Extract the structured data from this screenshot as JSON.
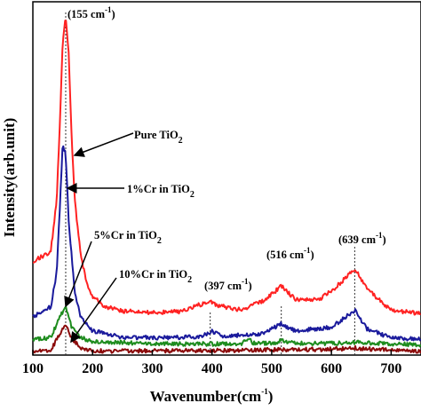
{
  "chart_data": {
    "type": "line",
    "xlabel": "Wavenumber(cm",
    "xlabel_sup": "-1",
    "xlabel_tail": ")",
    "ylabel": "Intensity(arb.unit)",
    "xlim": [
      100,
      750
    ],
    "ylim": [
      0,
      1.0
    ],
    "x_ticks": [
      100,
      200,
      300,
      400,
      500,
      600,
      700
    ],
    "x_tick_labels": [
      "100",
      "200",
      "300",
      "400",
      "500",
      "600",
      "700"
    ],
    "y_ticks_labeled": false,
    "grid": false,
    "legend": "none",
    "peak_markers": [
      155,
      397,
      516,
      639
    ],
    "peak_labels": [
      {
        "x": 155,
        "text": "(155 cm",
        "sup": "-1",
        "tail": ")"
      },
      {
        "x": 397,
        "text": "(397 cm",
        "sup": "-1",
        "tail": ")"
      },
      {
        "x": 516,
        "text": "(516 cm",
        "sup": "-1",
        "tail": ")"
      },
      {
        "x": 639,
        "text": "(639 cm",
        "sup": "-1",
        "tail": ")"
      }
    ],
    "series": [
      {
        "label": {
          "text": "Pure TiO",
          "sub": "2"
        },
        "color": "#ff2222",
        "x": [
          100,
          130,
          140,
          145,
          150,
          155,
          160,
          165,
          170,
          180,
          190,
          200,
          220,
          250,
          300,
          350,
          380,
          397,
          410,
          450,
          490,
          516,
          540,
          580,
          610,
          639,
          660,
          700,
          750
        ],
        "y": [
          0.27,
          0.3,
          0.45,
          0.66,
          0.91,
          0.98,
          0.87,
          0.62,
          0.45,
          0.29,
          0.21,
          0.17,
          0.14,
          0.127,
          0.123,
          0.126,
          0.146,
          0.156,
          0.143,
          0.13,
          0.16,
          0.2,
          0.16,
          0.16,
          0.2,
          0.25,
          0.19,
          0.13,
          0.12
        ]
      },
      {
        "label": {
          "text": "1%Cr in TiO",
          "sub": "2"
        },
        "color": "#1a1a9c",
        "x": [
          100,
          130,
          140,
          145,
          150,
          155,
          160,
          170,
          180,
          200,
          250,
          300,
          380,
          400,
          420,
          480,
          516,
          540,
          600,
          639,
          660,
          700,
          750
        ],
        "y": [
          0.11,
          0.14,
          0.24,
          0.42,
          0.61,
          0.58,
          0.39,
          0.18,
          0.11,
          0.07,
          0.052,
          0.05,
          0.052,
          0.068,
          0.055,
          0.06,
          0.09,
          0.07,
          0.08,
          0.13,
          0.075,
          0.05,
          0.045
        ]
      },
      {
        "label": {
          "text": "5%Cr in TiO",
          "sub": "2"
        },
        "color": "#1e8c1e",
        "x": [
          100,
          130,
          145,
          155,
          165,
          180,
          200,
          300,
          400,
          450,
          460,
          470,
          500,
          516,
          540,
          600,
          639,
          700,
          750
        ],
        "y": [
          0.045,
          0.05,
          0.11,
          0.14,
          0.08,
          0.05,
          0.04,
          0.032,
          0.032,
          0.034,
          0.047,
          0.034,
          0.034,
          0.041,
          0.034,
          0.034,
          0.037,
          0.032,
          0.03
        ]
      },
      {
        "label": {
          "text": "10%Cr in TiO",
          "sub": "2"
        },
        "color": "#8b0a0a",
        "x": [
          100,
          130,
          145,
          155,
          165,
          180,
          200,
          300,
          400,
          500,
          600,
          639,
          700,
          750
        ],
        "y": [
          0.01,
          0.015,
          0.06,
          0.085,
          0.05,
          0.018,
          0.012,
          0.012,
          0.013,
          0.015,
          0.017,
          0.02,
          0.015,
          0.01
        ]
      }
    ]
  }
}
